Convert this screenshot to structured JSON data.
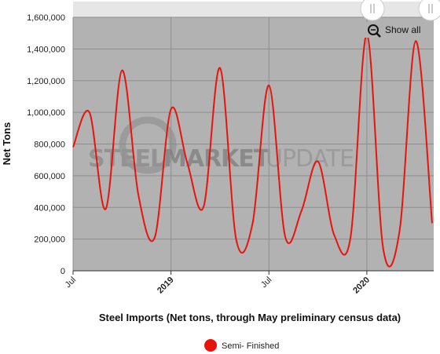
{
  "chart_data": {
    "type": "line",
    "xlabel": "Steel Imports (Net tons, through May preliminary census data)",
    "ylabel": "Net Tons",
    "ylim": [
      0,
      1600000
    ],
    "y_ticks": [
      "0",
      "200,000",
      "400,000",
      "600,000",
      "800,000",
      "1,000,000",
      "1,200,000",
      "1,400,000",
      "1,600,000"
    ],
    "x_ticks": [
      {
        "label": "Jul",
        "index": 0,
        "bold": false
      },
      {
        "label": "2019",
        "index": 6,
        "bold": true
      },
      {
        "label": "Jul",
        "index": 12,
        "bold": false
      },
      {
        "label": "2020",
        "index": 18,
        "bold": true
      }
    ],
    "grid": true,
    "legend_position": "bottom",
    "series": [
      {
        "name": "Semi- Finished",
        "color": "#e8140c",
        "x": [
          "2018-07",
          "2018-08",
          "2018-09",
          "2018-10",
          "2018-11",
          "2018-12",
          "2019-01",
          "2019-02",
          "2019-03",
          "2019-04",
          "2019-05",
          "2019-06",
          "2019-07",
          "2019-08",
          "2019-09",
          "2019-10",
          "2019-11",
          "2019-12",
          "2020-01",
          "2020-02",
          "2020-03",
          "2020-04",
          "2020-05"
        ],
        "values": [
          780000,
          1000000,
          390000,
          1265000,
          480000,
          210000,
          1020000,
          680000,
          405000,
          1280000,
          195000,
          300000,
          1170000,
          215000,
          380000,
          690000,
          225000,
          210000,
          1490000,
          140000,
          250000,
          1450000,
          300000
        ]
      }
    ]
  },
  "watermark": {
    "part1": "STEEL",
    "part2": "MARKET",
    "part3": "UPDATE"
  },
  "navigator": {
    "show_all": "Show all"
  },
  "colors": {
    "plot_bg": "#b2b2b2",
    "grid": "#8e8e8e",
    "line": "#e8140c",
    "navigator_bg": "#e6e6e6"
  }
}
